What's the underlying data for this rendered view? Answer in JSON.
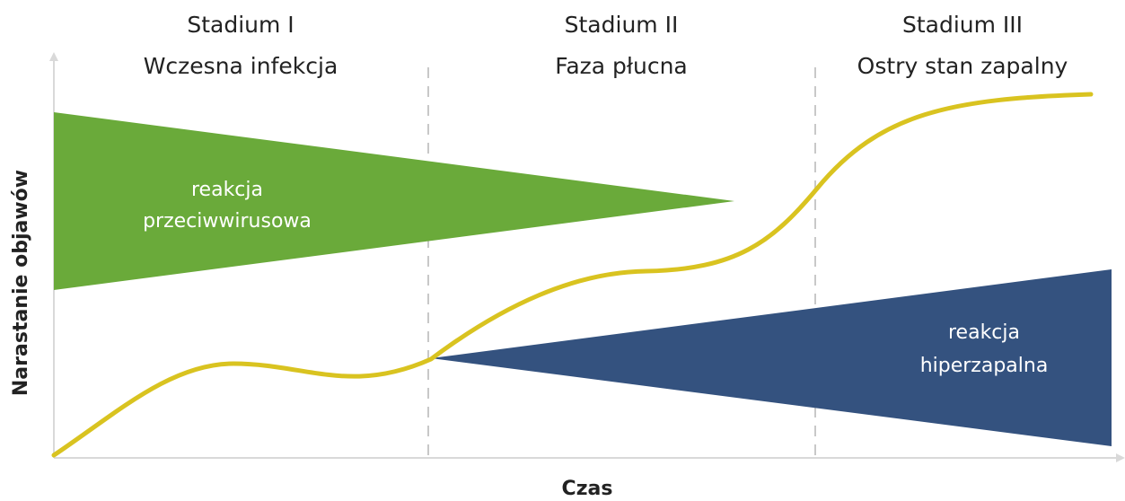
{
  "stages": [
    {
      "name": "Stadium I",
      "desc": "Wczesna infekcja"
    },
    {
      "name": "Stadium II",
      "desc": "Faza płucna"
    },
    {
      "name": "Stadium III",
      "desc": "Ostry stan zapalny"
    }
  ],
  "regions": {
    "antiviral": {
      "line1": "reakcja",
      "line2": "przeciwwirusowa",
      "color": "#6aaa3a"
    },
    "hyperinflammatory": {
      "line1": "reakcja",
      "line2": "hiperzapalna",
      "color": "#34527f"
    }
  },
  "axes": {
    "x_title": "Czas",
    "y_title": "Narastanie objawów"
  },
  "colors": {
    "curve": "#d9c320",
    "axis": "#d9d9d9",
    "divider": "#c8c8c8"
  }
}
